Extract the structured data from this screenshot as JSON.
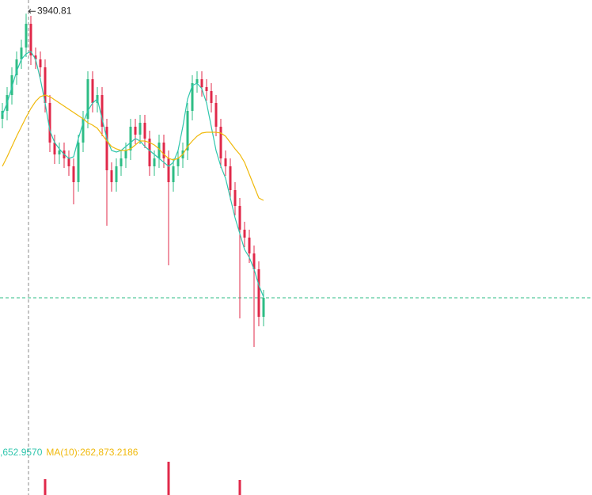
{
  "chart_data": {
    "type": "candlestick",
    "ylim": [
      3398,
      3958
    ],
    "up_color": "#2ebd85",
    "down_color": "#e0294a",
    "open": [
      3808,
      3818,
      3838,
      3863,
      3883,
      3898,
      3928,
      3888,
      3883,
      3873,
      3828,
      3778,
      3763,
      3768,
      3758,
      3748,
      3728,
      3778,
      3808,
      3858,
      3828,
      3838,
      3798,
      3743,
      3728,
      3748,
      3758,
      3768,
      3798,
      3788,
      3803,
      3783,
      3748,
      3758,
      3778,
      3758,
      3728,
      3748,
      3758,
      3768,
      3818,
      3853,
      3858,
      3848,
      3843,
      3828,
      3798,
      3758,
      3748,
      3718,
      3698,
      3668,
      3658,
      3638,
      3618,
      3558
    ],
    "high": [
      3828,
      3848,
      3873,
      3893,
      3908,
      3940.81,
      3938,
      3898,
      3893,
      3883,
      3838,
      3788,
      3778,
      3778,
      3768,
      3758,
      3788,
      3818,
      3868,
      3868,
      3848,
      3848,
      3808,
      3753,
      3758,
      3768,
      3778,
      3808,
      3808,
      3813,
      3813,
      3793,
      3768,
      3788,
      3788,
      3768,
      3758,
      3768,
      3778,
      3828,
      3863,
      3868,
      3868,
      3858,
      3853,
      3838,
      3808,
      3768,
      3758,
      3728,
      3708,
      3678,
      3668,
      3648,
      3628,
      3592
    ],
    "low": [
      3796,
      3806,
      3826,
      3851,
      3871,
      3886,
      3876,
      3871,
      3861,
      3816,
      3766,
      3751,
      3751,
      3746,
      3736,
      3700,
      3716,
      3766,
      3796,
      3816,
      3816,
      3786,
      3673,
      3716,
      3716,
      3736,
      3746,
      3756,
      3776,
      3776,
      3771,
      3736,
      3736,
      3746,
      3746,
      3623,
      3716,
      3736,
      3746,
      3756,
      3806,
      3841,
      3836,
      3831,
      3816,
      3786,
      3746,
      3736,
      3706,
      3686,
      3556,
      3646,
      3626,
      3520,
      3546,
      3546
    ],
    "close": [
      3818,
      3838,
      3863,
      3883,
      3898,
      3928,
      3888,
      3883,
      3873,
      3828,
      3778,
      3763,
      3768,
      3758,
      3748,
      3728,
      3778,
      3808,
      3858,
      3828,
      3838,
      3798,
      3743,
      3728,
      3748,
      3758,
      3768,
      3798,
      3788,
      3803,
      3783,
      3748,
      3758,
      3778,
      3758,
      3728,
      3748,
      3758,
      3768,
      3818,
      3853,
      3858,
      3848,
      3843,
      3828,
      3798,
      3758,
      3748,
      3718,
      3698,
      3668,
      3658,
      3638,
      3618,
      3558,
      3582
    ],
    "ma_lines": [
      {
        "color": "#2fc6ad",
        "values": [
          3813,
          3828,
          3848,
          3868,
          3883,
          3890,
          3893,
          3883,
          3858,
          3828,
          3793,
          3778,
          3770,
          3763,
          3758,
          3760,
          3783,
          3803,
          3818,
          3828,
          3833,
          3808,
          3783,
          3768,
          3766,
          3768,
          3773,
          3778,
          3783,
          3780,
          3773,
          3768,
          3763,
          3758,
          3753,
          3748,
          3753,
          3768,
          3798,
          3833,
          3850,
          3853,
          3846,
          3828,
          3798,
          3768,
          3748,
          3733,
          3708,
          3683,
          3663,
          3643,
          3633,
          3618,
          3598,
          3583
        ]
      },
      {
        "color": "#f0b90b",
        "values": [
          3748,
          3760,
          3773,
          3786,
          3798,
          3810,
          3821,
          3830,
          3836,
          3838,
          3836,
          3832,
          3828,
          3824,
          3820,
          3816,
          3812,
          3808,
          3803,
          3800,
          3796,
          3788,
          3780,
          3773,
          3770,
          3768,
          3768,
          3770,
          3775,
          3780,
          3780,
          3778,
          3775,
          3770,
          3763,
          3758,
          3756,
          3758,
          3763,
          3773,
          3780,
          3786,
          3790,
          3791,
          3791,
          3791,
          3790,
          3786,
          3778,
          3770,
          3763,
          3753,
          3738,
          3723,
          3708,
          3705
        ]
      }
    ],
    "volume": {
      "vlim": [
        0,
        800000
      ],
      "values": [
        null,
        null,
        null,
        null,
        null,
        null,
        null,
        null,
        null,
        246000,
        null,
        null,
        null,
        null,
        null,
        null,
        null,
        null,
        null,
        null,
        null,
        null,
        null,
        null,
        null,
        null,
        null,
        null,
        null,
        null,
        null,
        null,
        null,
        null,
        null,
        517000,
        null,
        null,
        null,
        null,
        null,
        null,
        null,
        null,
        null,
        null,
        null,
        null,
        null,
        null,
        234000,
        null,
        null,
        null,
        null,
        null
      ],
      "ma_labels": [
        {
          "text": ",652.9570",
          "color": "#2fc6ad"
        },
        {
          "text": "MA(10):262,873.2186",
          "color": "#f0b90b"
        }
      ]
    }
  }
}
